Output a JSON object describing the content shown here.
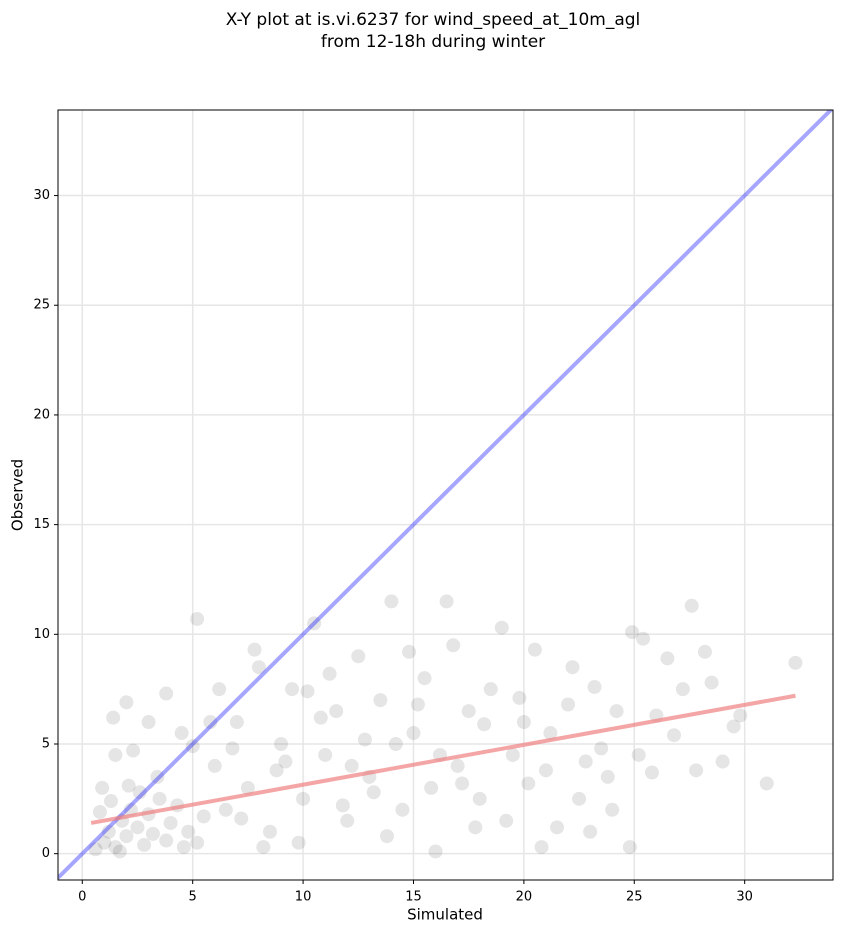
{
  "chart_data": {
    "type": "scatter",
    "title": "X-Y plot at is.vi.6237 for wind_speed_at_10m_agl",
    "subtitle": "from 12-18h during winter",
    "x_label": "Simulated",
    "y_label": "Observed",
    "color": "#000000",
    "alpha": 0.1,
    "grid": true,
    "xlim": [
      -1.1,
      34
    ],
    "ylim": [
      -1.2,
      33.9
    ],
    "xticks": [
      0,
      5,
      10,
      15,
      20,
      25,
      30
    ],
    "yticks": [
      0,
      5,
      10,
      15,
      20,
      25,
      30
    ],
    "x": [
      1,
      1.2,
      1.5,
      1.8,
      2,
      2.2,
      2.5,
      2.8,
      3,
      3.2,
      3.5,
      3.8,
      4,
      4.3,
      4.6,
      1.3,
      0.8,
      0.6,
      2.1,
      1.7,
      2.6,
      3.4,
      4.8,
      5.2,
      5.5,
      0.9,
      1.5,
      2.3,
      3,
      2,
      1.4,
      5.2,
      6,
      6.5,
      7,
      7.5,
      8,
      8.5,
      9,
      9.5,
      10,
      10.5,
      11,
      11.5,
      12,
      12.5,
      13,
      13.5,
      14,
      14.5,
      15,
      15.5,
      16,
      16.5,
      17,
      17.5,
      18,
      18.5,
      19,
      6.2,
      7.8,
      9.8,
      11.2,
      12.8,
      13.8,
      14.8,
      15.8,
      16.8,
      17.8,
      5.8,
      6.8,
      8.8,
      10.8,
      12.2,
      13.2,
      14.2,
      15.2,
      16.2,
      17.2,
      8.2,
      10.2,
      11.8,
      9.2,
      7.2,
      4.5,
      3.8,
      5,
      19.5,
      20,
      20.5,
      20.8,
      21,
      21.5,
      22,
      22.2,
      22.5,
      23,
      23.2,
      23.5,
      24,
      24.2,
      24.8,
      24.9,
      25.2,
      25.4,
      25.8,
      26,
      26.5,
      26.8,
      27.2,
      27.6,
      27.8,
      28.2,
      28.5,
      29,
      29.5,
      29.8,
      31,
      32.3,
      19.2,
      20.2,
      21.2,
      22.8,
      23.8,
      18.2,
      19.8
    ],
    "values": [
      0.5,
      1,
      0.3,
      1.5,
      0.8,
      2,
      1.2,
      0.4,
      1.8,
      0.9,
      2.5,
      0.6,
      1.4,
      2.2,
      0.3,
      2.4,
      1.9,
      0.2,
      3.1,
      0.1,
      2.8,
      3.5,
      1,
      0.5,
      1.7,
      3,
      4.5,
      4.7,
      6,
      6.9,
      6.2,
      10.7,
      4,
      2,
      6,
      3,
      8.5,
      1,
      5,
      7.5,
      2.5,
      10.5,
      4.5,
      6.5,
      1.5,
      9,
      3.5,
      7,
      11.5,
      2,
      5.5,
      8,
      0.1,
      11.5,
      4,
      6.5,
      2.5,
      7.5,
      10.3,
      7.5,
      9.3,
      0.5,
      8.2,
      5.2,
      0.8,
      9.2,
      3,
      9.5,
      1.2,
      6,
      4.8,
      3.8,
      6.2,
      4,
      2.8,
      5,
      6.8,
      4.5,
      3.2,
      0.3,
      7.4,
      2.2,
      4.2,
      1.6,
      5.5,
      7.3,
      4.9,
      4.5,
      6,
      9.3,
      0.3,
      3.8,
      1.2,
      6.8,
      8.5,
      2.5,
      1,
      7.6,
      4.8,
      2,
      6.5,
      0.3,
      10.1,
      4.5,
      9.8,
      3.7,
      6.3,
      8.9,
      5.4,
      7.5,
      11.3,
      3.8,
      9.2,
      7.8,
      4.2,
      5.8,
      6.3,
      3.2,
      8.7,
      1.5,
      3.2,
      5.5,
      4.2,
      3.5,
      5.9,
      7.1
    ],
    "lines": [
      {
        "color": "#0000ff",
        "alpha": 0.35,
        "x": [
          -1.1,
          34
        ],
        "values": [
          -1.1,
          34
        ]
      },
      {
        "color": "#f08080",
        "alpha": 0.7,
        "x": [
          0.4,
          32.3
        ],
        "values": [
          1.4,
          7.2
        ]
      }
    ]
  }
}
